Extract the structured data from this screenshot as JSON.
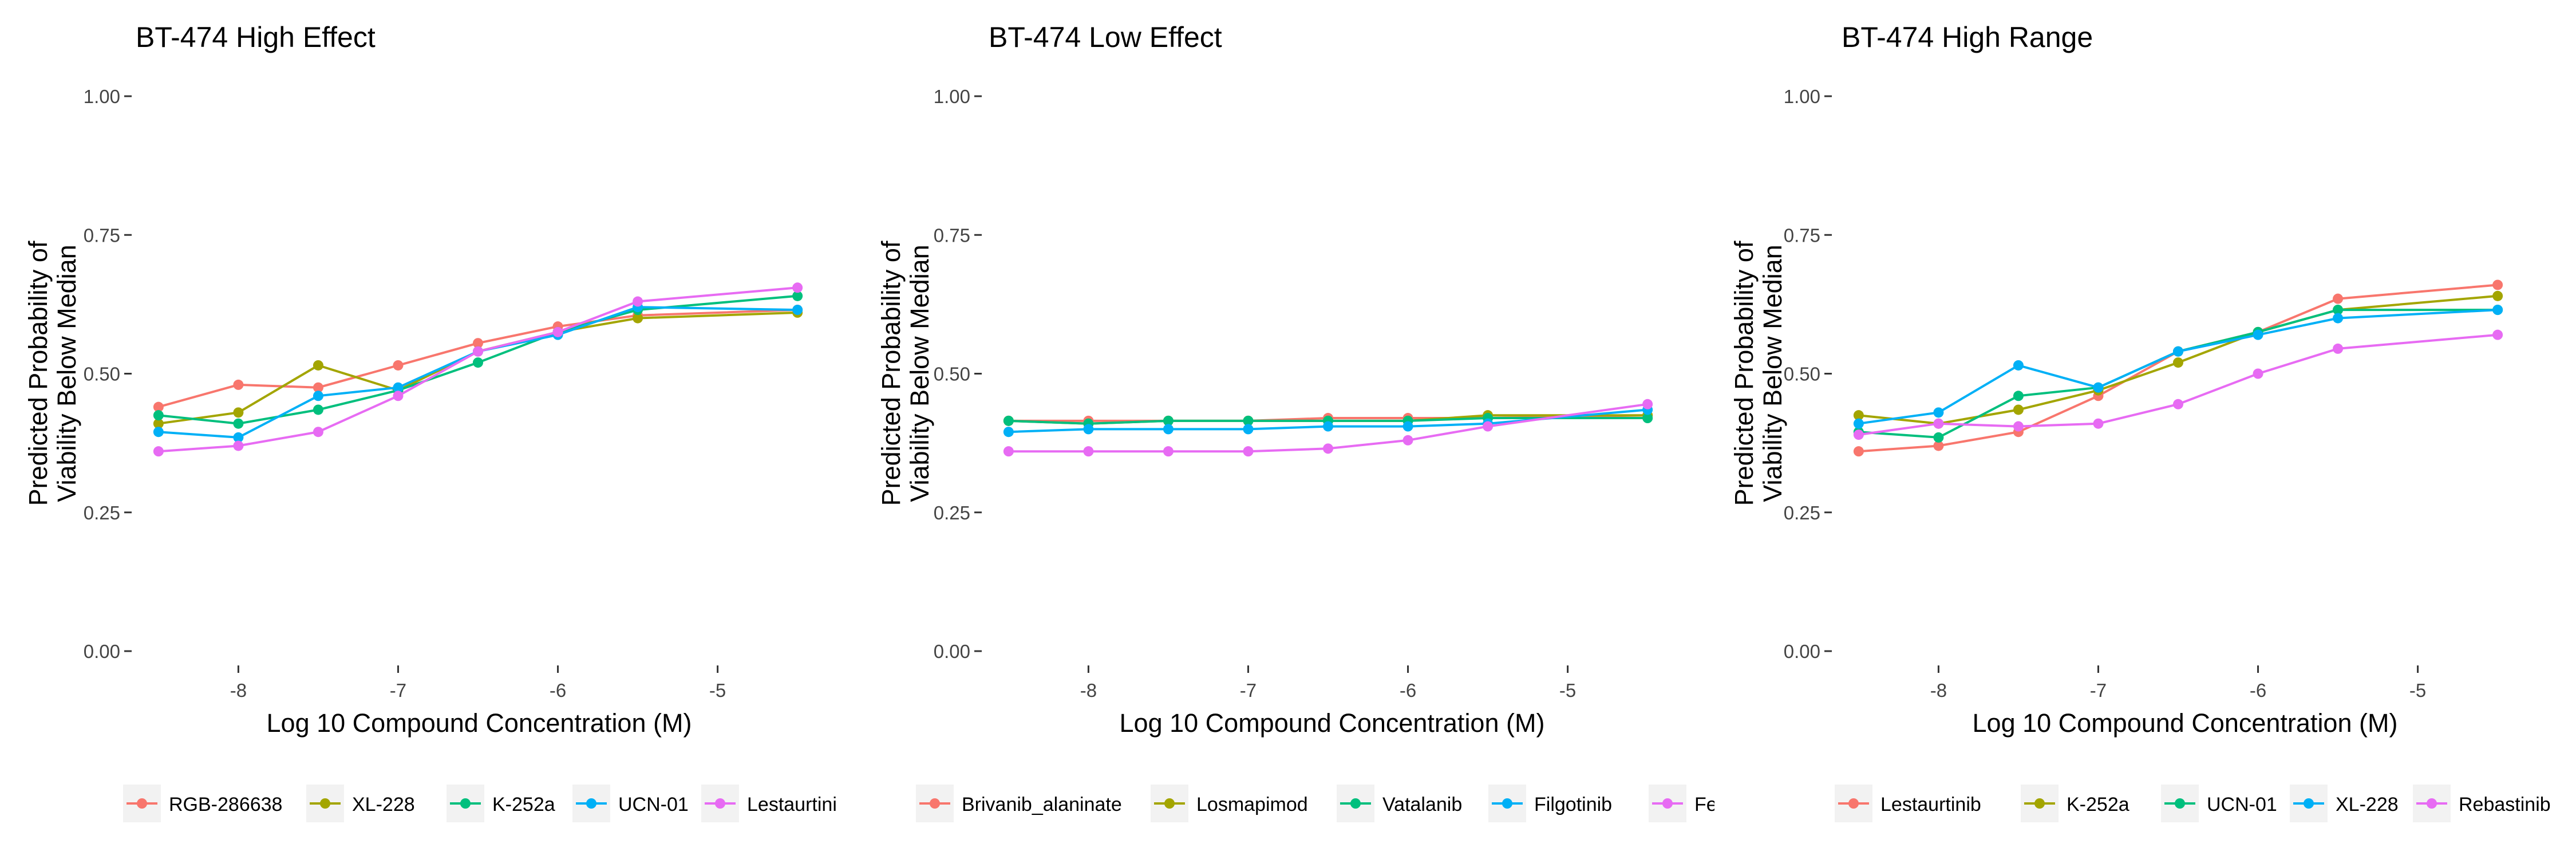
{
  "chart_data": [
    {
      "type": "line",
      "title": "BT-474 High Effect",
      "xlabel": "Log 10 Compound Concentration (M)",
      "ylabel": [
        "Predicted Probability of",
        "Viability Below Median"
      ],
      "x": [
        -8.5,
        -8.0,
        -7.5,
        -7.0,
        -6.5,
        -6.0,
        -5.5,
        -4.5
      ],
      "xticks": [
        "-8",
        "-7",
        "-6",
        "-5"
      ],
      "yticks": [
        "0.00",
        "0.25",
        "0.50",
        "0.75",
        "1.00"
      ],
      "ylim": [
        0,
        1
      ],
      "grid": false,
      "legend": "bottom",
      "series": [
        {
          "name": "RGB-286638",
          "color": "#F8766D",
          "values": [
            0.44,
            0.48,
            0.475,
            0.515,
            0.555,
            0.585,
            0.605,
            0.615
          ]
        },
        {
          "name": "XL-228",
          "color": "#A3A500",
          "values": [
            0.41,
            0.43,
            0.515,
            0.47,
            0.54,
            0.575,
            0.6,
            0.61
          ]
        },
        {
          "name": "K-252a",
          "color": "#00BF7D",
          "values": [
            0.425,
            0.41,
            0.435,
            0.47,
            0.52,
            0.575,
            0.615,
            0.64
          ]
        },
        {
          "name": "UCN-01",
          "color": "#00B0F6",
          "values": [
            0.395,
            0.385,
            0.46,
            0.475,
            0.54,
            0.57,
            0.62,
            0.615
          ]
        },
        {
          "name": "Lestaurtinib",
          "legend_label": "Lestaurtini",
          "color": "#E76BF3",
          "values": [
            0.36,
            0.37,
            0.395,
            0.46,
            0.54,
            0.575,
            0.63,
            0.655
          ]
        }
      ]
    },
    {
      "type": "line",
      "title": "BT-474 Low Effect",
      "xlabel": "Log 10 Compound Concentration (M)",
      "ylabel": [
        "Predicted Probability of",
        "Viability Below Median"
      ],
      "x": [
        -8.5,
        -8.0,
        -7.5,
        -7.0,
        -6.5,
        -6.0,
        -5.5,
        -4.5
      ],
      "xticks": [
        "-8",
        "-7",
        "-6",
        "-5"
      ],
      "yticks": [
        "0.00",
        "0.25",
        "0.50",
        "0.75",
        "1.00"
      ],
      "ylim": [
        0,
        1
      ],
      "grid": false,
      "legend": "bottom",
      "series": [
        {
          "name": "Brivanib_alaninate",
          "color": "#F8766D",
          "values": [
            0.415,
            0.415,
            0.415,
            0.415,
            0.42,
            0.42,
            0.42,
            0.425
          ]
        },
        {
          "name": "Losmapimod",
          "color": "#A3A500",
          "values": [
            0.415,
            0.41,
            0.415,
            0.415,
            0.415,
            0.415,
            0.425,
            0.425
          ]
        },
        {
          "name": "Vatalanib",
          "color": "#00BF7D",
          "values": [
            0.415,
            0.41,
            0.415,
            0.415,
            0.415,
            0.415,
            0.42,
            0.42
          ]
        },
        {
          "name": "Filgotinib",
          "color": "#00B0F6",
          "values": [
            0.395,
            0.4,
            0.4,
            0.4,
            0.405,
            0.405,
            0.41,
            0.435
          ]
        },
        {
          "name": "Fedratinib",
          "legend_label": "Fe",
          "color": "#E76BF3",
          "values": [
            0.36,
            0.36,
            0.36,
            0.36,
            0.365,
            0.38,
            0.405,
            0.445
          ]
        }
      ]
    },
    {
      "type": "line",
      "title": "BT-474 High Range",
      "xlabel": "Log 10 Compound Concentration (M)",
      "ylabel": [
        "Predicted Probability of",
        "Viability Below Median"
      ],
      "x": [
        -8.5,
        -8.0,
        -7.5,
        -7.0,
        -6.5,
        -6.0,
        -5.5,
        -4.5
      ],
      "xticks": [
        "-8",
        "-7",
        "-6",
        "-5"
      ],
      "yticks": [
        "0.00",
        "0.25",
        "0.50",
        "0.75",
        "1.00"
      ],
      "ylim": [
        0,
        1
      ],
      "grid": false,
      "legend": "bottom",
      "series": [
        {
          "name": "Lestaurtinib",
          "color": "#F8766D",
          "values": [
            0.36,
            0.37,
            0.395,
            0.46,
            0.54,
            0.575,
            0.635,
            0.66
          ]
        },
        {
          "name": "K-252a",
          "color": "#A3A500",
          "values": [
            0.425,
            0.41,
            0.435,
            0.47,
            0.52,
            0.575,
            0.615,
            0.64
          ]
        },
        {
          "name": "UCN-01",
          "color": "#00BF7D",
          "values": [
            0.395,
            0.385,
            0.46,
            0.475,
            0.54,
            0.575,
            0.615,
            0.615
          ]
        },
        {
          "name": "XL-228",
          "color": "#00B0F6",
          "values": [
            0.41,
            0.43,
            0.515,
            0.475,
            0.54,
            0.57,
            0.6,
            0.615
          ]
        },
        {
          "name": "Rebastinib",
          "color": "#E76BF3",
          "values": [
            0.39,
            0.41,
            0.405,
            0.41,
            0.445,
            0.5,
            0.545,
            0.57
          ]
        }
      ]
    }
  ]
}
